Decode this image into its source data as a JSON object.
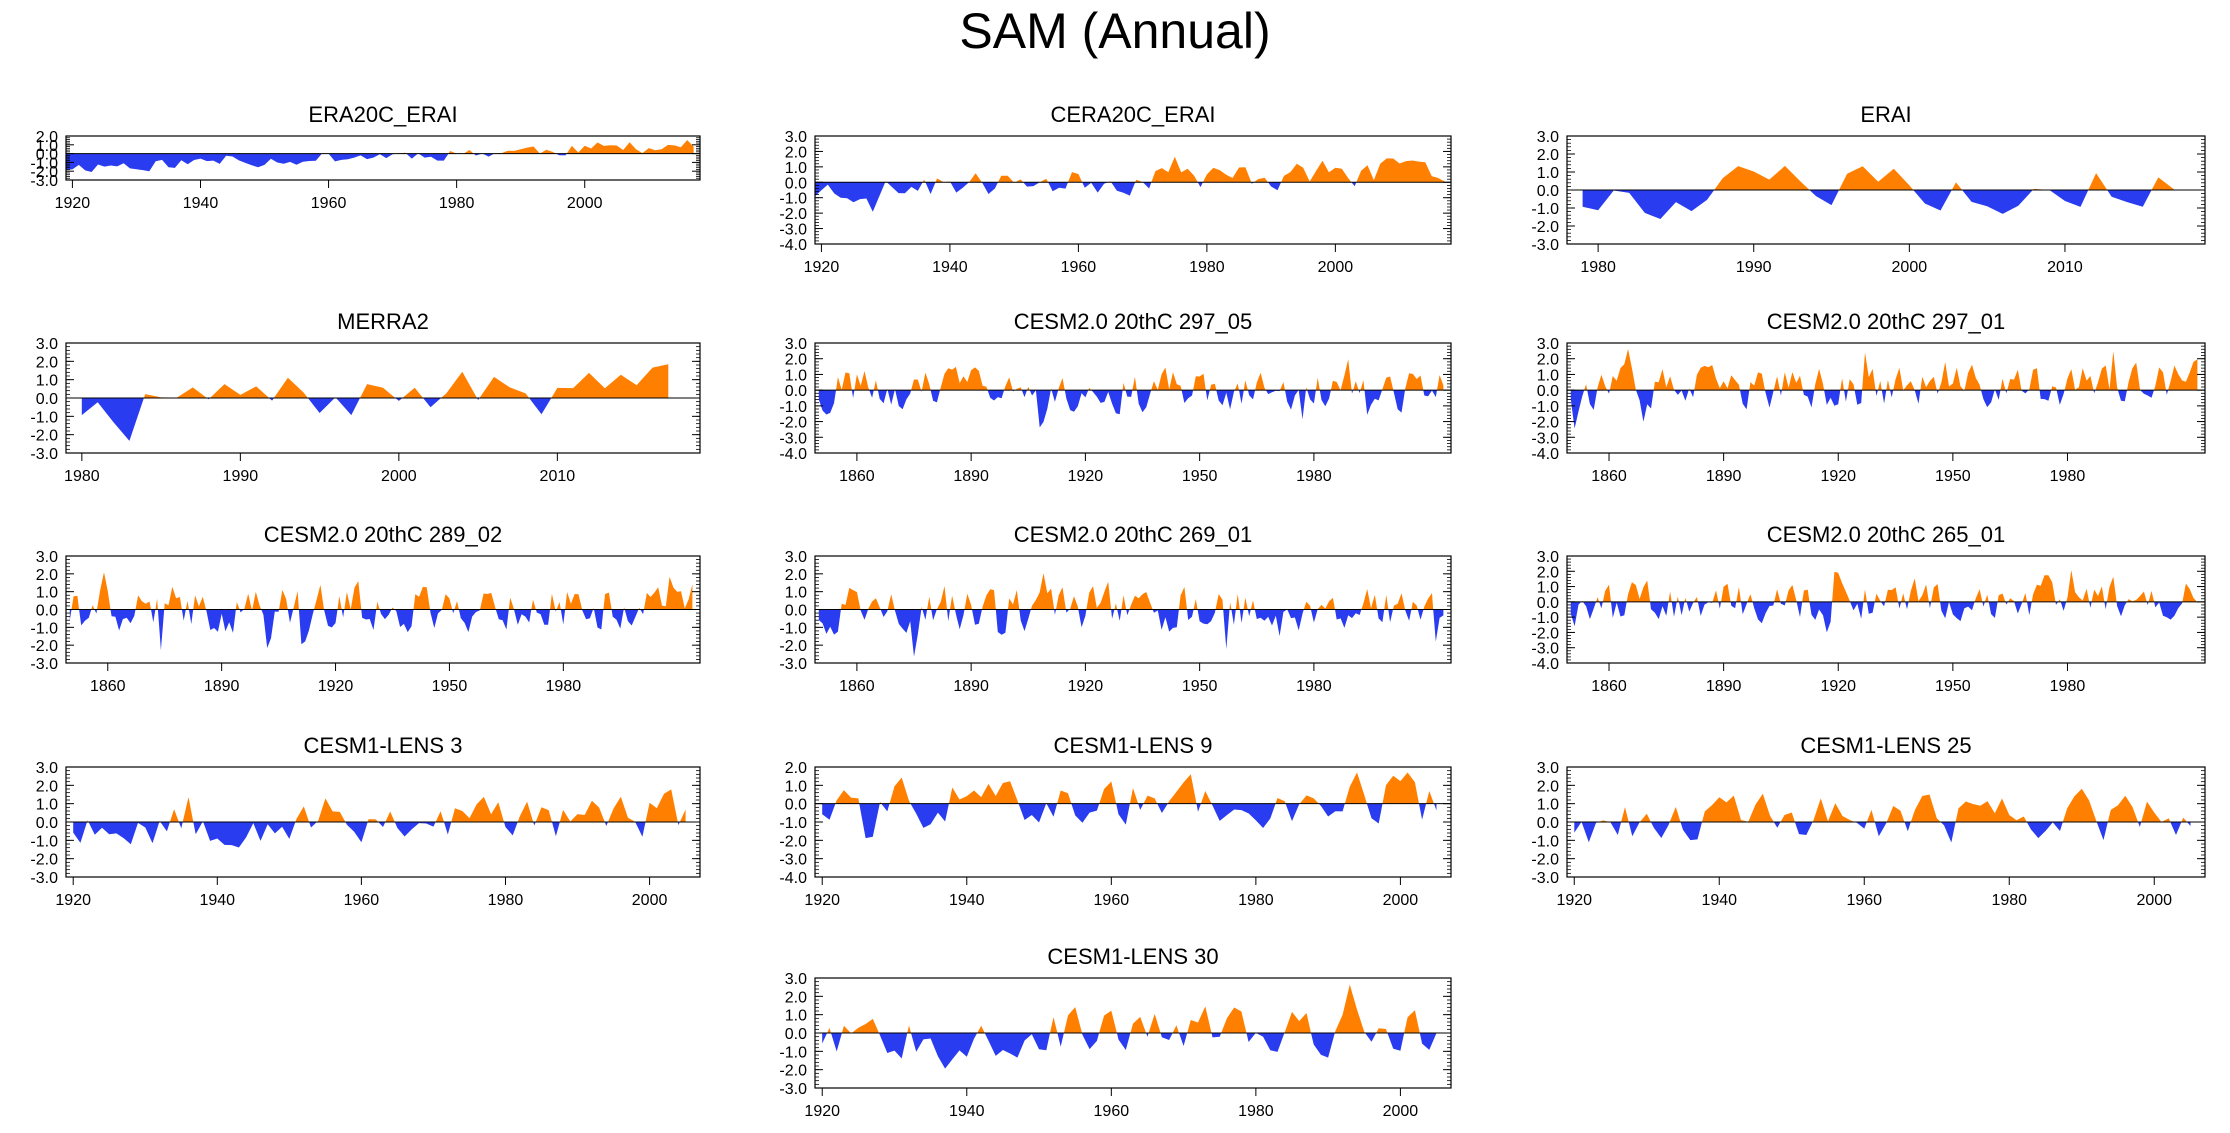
{
  "title": "SAM (Annual)",
  "colors": {
    "positive": "#ff8000",
    "negative": "#2a3cf0",
    "axis": "#000000"
  },
  "chart_data": [
    {
      "type": "area",
      "title": "ERA20C_ERAI",
      "xlim": [
        1919,
        2018
      ],
      "ylim": [
        -3.0,
        2.0
      ],
      "yticks": [
        "2.0",
        "1.0",
        "0.0",
        "-1.0",
        "-2.0",
        "-3.0"
      ],
      "xticks": [
        "1920",
        "1940",
        "1960",
        "1980",
        "2000"
      ],
      "x_start": 1919,
      "x_end": 2017,
      "seed": 11,
      "amp": 0.55,
      "trend": [
        -1.5,
        1.0
      ]
    },
    {
      "type": "area",
      "title": "CERA20C_ERAI",
      "xlim": [
        1919,
        2018
      ],
      "ylim": [
        -4.0,
        3.0
      ],
      "yticks": [
        "3.0",
        "2.0",
        "1.0",
        "0.0",
        "-1.0",
        "-2.0",
        "-3.0",
        "-4.0"
      ],
      "xticks": [
        "1920",
        "1940",
        "1960",
        "1980",
        "2000"
      ],
      "x_start": 1919,
      "x_end": 2017,
      "seed": 23,
      "amp": 0.65,
      "trend": [
        -0.5,
        0.8
      ]
    },
    {
      "type": "area",
      "title": "ERAI",
      "xlim": [
        1978,
        2019
      ],
      "ylim": [
        -3.0,
        3.0
      ],
      "yticks": [
        "3.0",
        "2.0",
        "1.0",
        "0.0",
        "-1.0",
        "-2.0",
        "-3.0"
      ],
      "xticks": [
        "1980",
        "1990",
        "2000",
        "2010"
      ],
      "x_start": 1979,
      "x_end": 2017,
      "seed": 5,
      "amp": 1.0,
      "trend": [
        -0.3,
        0.5
      ]
    },
    {
      "type": "area",
      "title": "MERRA2",
      "xlim": [
        1979,
        2019
      ],
      "ylim": [
        -3.0,
        3.0
      ],
      "yticks": [
        "3.0",
        "2.0",
        "1.0",
        "0.0",
        "-1.0",
        "-2.0",
        "-3.0"
      ],
      "xticks": [
        "1980",
        "1990",
        "2000",
        "2010"
      ],
      "x_start": 1980,
      "x_end": 2017,
      "seed": 7,
      "amp": 1.0,
      "trend": [
        -0.3,
        0.5
      ]
    },
    {
      "type": "area",
      "title": "CESM2.0 20thC 297_05",
      "xlim": [
        1849,
        2016
      ],
      "ylim": [
        -4.0,
        3.0
      ],
      "yticks": [
        "3.0",
        "2.0",
        "1.0",
        "0.0",
        "-1.0",
        "-2.0",
        "-3.0",
        "-4.0"
      ],
      "xticks": [
        "1860",
        "1890",
        "1920",
        "1950",
        "1980"
      ],
      "x_start": 1850,
      "x_end": 2014,
      "seed": 31,
      "amp": 1.0,
      "trend": [
        0,
        0
      ]
    },
    {
      "type": "area",
      "title": "CESM2.0 20thC 297_01",
      "xlim": [
        1849,
        2016
      ],
      "ylim": [
        -4.0,
        3.0
      ],
      "yticks": [
        "3.0",
        "2.0",
        "1.0",
        "0.0",
        "-1.0",
        "-2.0",
        "-3.0",
        "-4.0"
      ],
      "xticks": [
        "1860",
        "1890",
        "1920",
        "1950",
        "1980"
      ],
      "x_start": 1850,
      "x_end": 2014,
      "seed": 37,
      "amp": 1.0,
      "trend": [
        0,
        0.3
      ]
    },
    {
      "type": "area",
      "title": "CESM2.0 20thC 289_02",
      "xlim": [
        1849,
        2016
      ],
      "ylim": [
        -3.0,
        3.0
      ],
      "yticks": [
        "3.0",
        "2.0",
        "1.0",
        "0.0",
        "-1.0",
        "-2.0",
        "-3.0"
      ],
      "xticks": [
        "1860",
        "1890",
        "1920",
        "1950",
        "1980"
      ],
      "x_start": 1850,
      "x_end": 2014,
      "seed": 41,
      "amp": 1.0,
      "trend": [
        0,
        0.2
      ]
    },
    {
      "type": "area",
      "title": "CESM2.0 20thC 269_01",
      "xlim": [
        1849,
        2016
      ],
      "ylim": [
        -3.0,
        3.0
      ],
      "yticks": [
        "3.0",
        "2.0",
        "1.0",
        "0.0",
        "-1.0",
        "-2.0",
        "-3.0"
      ],
      "xticks": [
        "1860",
        "1890",
        "1920",
        "1950",
        "1980"
      ],
      "x_start": 1850,
      "x_end": 2014,
      "seed": 43,
      "amp": 1.0,
      "trend": [
        0,
        0.2
      ]
    },
    {
      "type": "area",
      "title": "CESM2.0 20thC 265_01",
      "xlim": [
        1849,
        2016
      ],
      "ylim": [
        -4.0,
        3.0
      ],
      "yticks": [
        "3.0",
        "2.0",
        "1.0",
        "0.0",
        "-1.0",
        "-2.0",
        "-3.0",
        "-4.0"
      ],
      "xticks": [
        "1860",
        "1890",
        "1920",
        "1950",
        "1980"
      ],
      "x_start": 1850,
      "x_end": 2014,
      "seed": 47,
      "amp": 1.0,
      "trend": [
        -0.2,
        0.5
      ]
    },
    {
      "type": "area",
      "title": "CESM1-LENS 3",
      "xlim": [
        1919,
        2007
      ],
      "ylim": [
        -3.0,
        3.0
      ],
      "yticks": [
        "3.0",
        "2.0",
        "1.0",
        "0.0",
        "-1.0",
        "-2.0",
        "-3.0"
      ],
      "xticks": [
        "1920",
        "1940",
        "1960",
        "1980",
        "2000"
      ],
      "x_start": 1920,
      "x_end": 2005,
      "seed": 53,
      "amp": 1.0,
      "trend": [
        0,
        0.3
      ]
    },
    {
      "type": "area",
      "title": "CESM1-LENS 9",
      "xlim": [
        1919,
        2007
      ],
      "ylim": [
        -4.0,
        2.0
      ],
      "yticks": [
        "2.0",
        "1.0",
        "0.0",
        "-1.0",
        "-2.0",
        "-3.0",
        "-4.0"
      ],
      "xticks": [
        "1920",
        "1940",
        "1960",
        "1980",
        "2000"
      ],
      "x_start": 1920,
      "x_end": 2005,
      "seed": 59,
      "amp": 1.0,
      "trend": [
        0,
        0.4
      ]
    },
    {
      "type": "area",
      "title": "CESM1-LENS 25",
      "xlim": [
        1919,
        2007
      ],
      "ylim": [
        -3.0,
        3.0
      ],
      "yticks": [
        "3.0",
        "2.0",
        "1.0",
        "0.0",
        "-1.0",
        "-2.0",
        "-3.0"
      ],
      "xticks": [
        "1920",
        "1940",
        "1960",
        "1980",
        "2000"
      ],
      "x_start": 1920,
      "x_end": 2005,
      "seed": 61,
      "amp": 1.0,
      "trend": [
        0,
        0.3
      ]
    },
    {
      "type": "area",
      "title": "CESM1-LENS 30",
      "xlim": [
        1919,
        2007
      ],
      "ylim": [
        -3.0,
        3.0
      ],
      "yticks": [
        "3.0",
        "2.0",
        "1.0",
        "0.0",
        "-1.0",
        "-2.0",
        "-3.0"
      ],
      "xticks": [
        "1920",
        "1940",
        "1960",
        "1980",
        "2000"
      ],
      "x_start": 1920,
      "x_end": 2005,
      "seed": 67,
      "amp": 1.0,
      "trend": [
        0,
        0.2
      ]
    }
  ]
}
